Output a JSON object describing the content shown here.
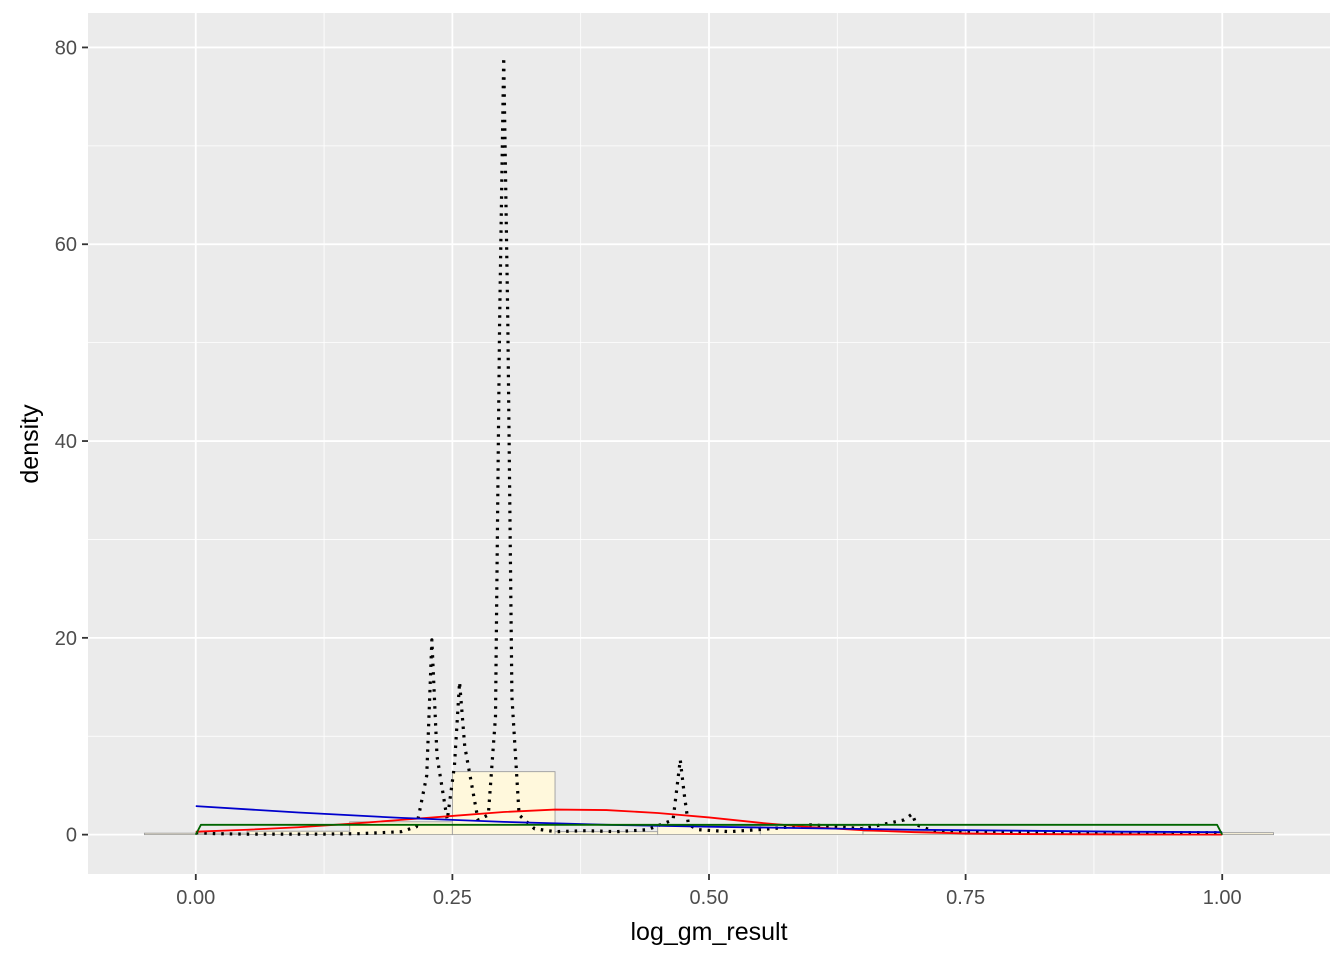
{
  "chart_data": {
    "type": "area",
    "xlabel": "log_gm_result",
    "ylabel": "density",
    "xlim": [
      -0.105,
      1.105
    ],
    "ylim": [
      -4.0,
      83.5
    ],
    "grid": true,
    "panel_background": "#ebebeb",
    "x_ticks": [
      {
        "value": 0.0,
        "label": "0.00"
      },
      {
        "value": 0.25,
        "label": "0.25"
      },
      {
        "value": 0.5,
        "label": "0.50"
      },
      {
        "value": 0.75,
        "label": "0.75"
      },
      {
        "value": 1.0,
        "label": "1.00"
      }
    ],
    "y_ticks": [
      {
        "value": 0,
        "label": "0"
      },
      {
        "value": 20,
        "label": "20"
      },
      {
        "value": 40,
        "label": "40"
      },
      {
        "value": 60,
        "label": "60"
      },
      {
        "value": 80,
        "label": "80"
      }
    ],
    "histogram": {
      "fill": "#fff8dc",
      "stroke": "#9e9e9e",
      "bins": [
        {
          "x0": -0.05,
          "x1": 0.05,
          "value": 0.15
        },
        {
          "x0": 0.05,
          "x1": 0.15,
          "value": 0.35
        },
        {
          "x0": 0.15,
          "x1": 0.25,
          "value": 1.3
        },
        {
          "x0": 0.25,
          "x1": 0.35,
          "value": 6.4
        },
        {
          "x0": 0.35,
          "x1": 0.45,
          "value": 0.3
        },
        {
          "x0": 0.45,
          "x1": 0.55,
          "value": 0.9
        },
        {
          "x0": 0.55,
          "x1": 0.65,
          "value": 0.9
        },
        {
          "x0": 0.65,
          "x1": 0.75,
          "value": 0.35
        },
        {
          "x0": 0.75,
          "x1": 0.85,
          "value": 0.1
        },
        {
          "x0": 0.85,
          "x1": 0.95,
          "value": 0.1
        },
        {
          "x0": 0.95,
          "x1": 1.05,
          "value": 0.2
        }
      ]
    },
    "series": [
      {
        "style": "dotted",
        "color": "#000000",
        "x": [
          0.0,
          0.02,
          0.05,
          0.08,
          0.12,
          0.16,
          0.2,
          0.215,
          0.225,
          0.23,
          0.235,
          0.245,
          0.252,
          0.257,
          0.262,
          0.275,
          0.285,
          0.292,
          0.296,
          0.3,
          0.304,
          0.308,
          0.315,
          0.33,
          0.35,
          0.38,
          0.41,
          0.44,
          0.465,
          0.472,
          0.476,
          0.48,
          0.49,
          0.52,
          0.56,
          0.6,
          0.65,
          0.69,
          0.698,
          0.702,
          0.72,
          0.8,
          0.9,
          1.0
        ],
        "y": [
          0.2,
          0.1,
          0.05,
          0.05,
          0.05,
          0.1,
          0.3,
          0.8,
          6.0,
          19.8,
          8.0,
          1.5,
          7.0,
          15.5,
          9.0,
          1.5,
          2.0,
          12.0,
          52.0,
          79.0,
          52.0,
          14.0,
          2.0,
          0.6,
          0.3,
          0.4,
          0.3,
          0.5,
          1.5,
          7.6,
          4.0,
          1.0,
          0.5,
          0.3,
          0.6,
          1.0,
          0.6,
          1.5,
          2.1,
          1.0,
          0.3,
          0.2,
          0.2,
          0.2
        ]
      },
      {
        "style": "solid",
        "color": "#ff0000",
        "x": [
          0.0,
          0.05,
          0.1,
          0.15,
          0.2,
          0.25,
          0.3,
          0.35,
          0.4,
          0.45,
          0.5,
          0.55,
          0.6,
          0.65,
          0.7,
          0.75,
          0.8,
          0.9,
          1.0
        ],
        "y": [
          0.3,
          0.5,
          0.75,
          1.1,
          1.5,
          1.9,
          2.3,
          2.55,
          2.5,
          2.2,
          1.75,
          1.2,
          0.75,
          0.45,
          0.25,
          0.12,
          0.06,
          0.02,
          0.0
        ]
      },
      {
        "style": "solid",
        "color": "#0000cd",
        "x": [
          0.0,
          0.1,
          0.2,
          0.3,
          0.4,
          0.5,
          0.6,
          0.7,
          0.8,
          0.9,
          1.0
        ],
        "y": [
          2.9,
          2.25,
          1.7,
          1.3,
          1.0,
          0.8,
          0.65,
          0.5,
          0.4,
          0.3,
          0.25
        ]
      },
      {
        "style": "solid",
        "color": "#006400",
        "x": [
          0.0,
          0.005,
          0.995,
          1.0
        ],
        "y": [
          0.0,
          1.0,
          1.0,
          0.0
        ]
      }
    ]
  }
}
